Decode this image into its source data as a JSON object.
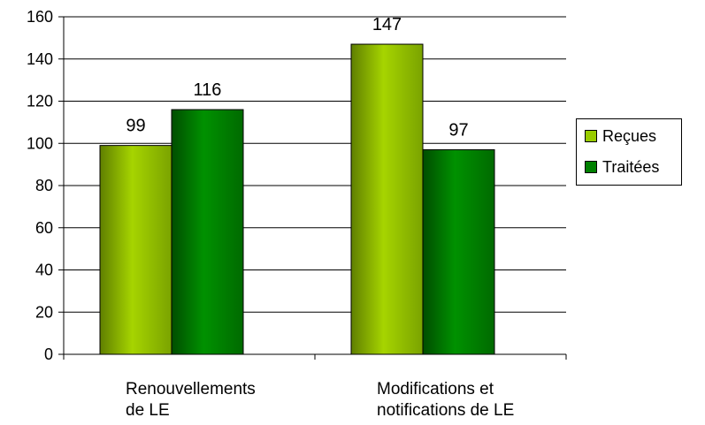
{
  "chart_data": {
    "type": "bar",
    "categories": [
      "Renouvellements de LE",
      "Modifications et notifications de LE"
    ],
    "category_lines": [
      [
        "Renouvellements",
        "de LE"
      ],
      [
        "Modifications et",
        "notifications de LE"
      ]
    ],
    "series": [
      {
        "name": "Reçues",
        "values": [
          99,
          147
        ],
        "color": "#99cc00"
      },
      {
        "name": "Traitées",
        "values": [
          116,
          97
        ],
        "color": "#008000"
      }
    ],
    "ylim": [
      0,
      160
    ],
    "yticks": [
      0,
      20,
      40,
      60,
      80,
      100,
      120,
      140,
      160
    ],
    "grid": true,
    "legend_position": "right",
    "data_labels": true,
    "title": "",
    "xlabel": "",
    "ylabel": ""
  }
}
